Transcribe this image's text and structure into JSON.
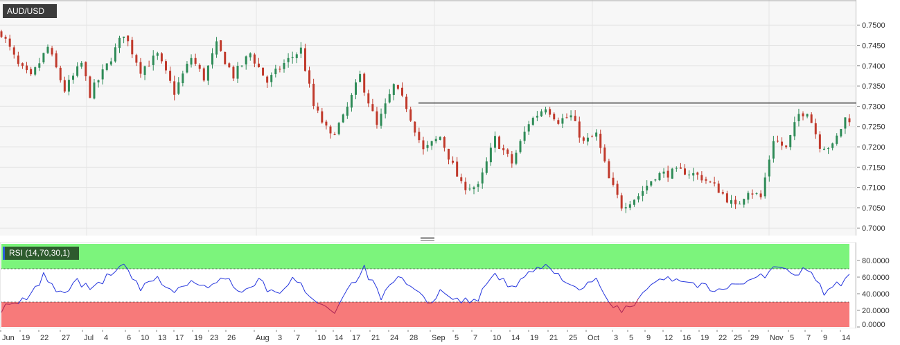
{
  "symbol": "AUD/USD",
  "indicator_label": "RSI (14,70,30,1)",
  "colors": {
    "up_candle": "#2e8b57",
    "down_candle": "#c0392b",
    "rsi_line": "#2233dd",
    "rsi_oversold_line": "#aa2255",
    "overbought_zone": "#7cf47c",
    "oversold_zone": "#f77a7a",
    "resistance_line": "#222222"
  },
  "chart_data": [
    {
      "type": "candlestick",
      "series_name": "AUD/USD",
      "y_axis": {
        "ticks": [
          "0.7500",
          "0.7450",
          "0.7400",
          "0.7350",
          "0.7300",
          "0.7250",
          "0.7200",
          "0.7150",
          "0.7100",
          "0.7050",
          "0.7000"
        ],
        "ylim": [
          0.6985,
          0.7555
        ]
      },
      "x_axis": {
        "tick_labels": [
          "Jun",
          "19",
          "22",
          "27",
          "Jul",
          "4",
          "6",
          "10",
          "13",
          "17",
          "19",
          "23",
          "26",
          "Aug",
          "3",
          "7",
          "10",
          "14",
          "17",
          "21",
          "24",
          "28",
          "Sep",
          "5",
          "7",
          "10",
          "14",
          "19",
          "21",
          "25",
          "Oct",
          "3",
          "5",
          "9",
          "12",
          "16",
          "19",
          "22",
          "25",
          "29",
          "Nov",
          "5",
          "7",
          "9",
          "14"
        ]
      },
      "resistance_level": 0.7308,
      "anchors": [
        {
          "t": 0,
          "v": 0.7482
        },
        {
          "t": 4,
          "v": 0.74
        },
        {
          "t": 7,
          "v": 0.737
        },
        {
          "t": 11,
          "v": 0.7445
        },
        {
          "t": 15,
          "v": 0.734
        },
        {
          "t": 19,
          "v": 0.7405
        },
        {
          "t": 21,
          "v": 0.733
        },
        {
          "t": 25,
          "v": 0.74
        },
        {
          "t": 29,
          "v": 0.748
        },
        {
          "t": 33,
          "v": 0.739
        },
        {
          "t": 37,
          "v": 0.7425
        },
        {
          "t": 41,
          "v": 0.7335
        },
        {
          "t": 45,
          "v": 0.742
        },
        {
          "t": 48,
          "v": 0.737
        },
        {
          "t": 51,
          "v": 0.745
        },
        {
          "t": 55,
          "v": 0.7375
        },
        {
          "t": 59,
          "v": 0.743
        },
        {
          "t": 63,
          "v": 0.736
        },
        {
          "t": 67,
          "v": 0.7405
        },
        {
          "t": 71,
          "v": 0.744
        },
        {
          "t": 74,
          "v": 0.73
        },
        {
          "t": 78,
          "v": 0.7225
        },
        {
          "t": 81,
          "v": 0.727
        },
        {
          "t": 85,
          "v": 0.7375
        },
        {
          "t": 89,
          "v": 0.725
        },
        {
          "t": 93,
          "v": 0.735
        },
        {
          "t": 96,
          "v": 0.73
        },
        {
          "t": 100,
          "v": 0.719
        },
        {
          "t": 104,
          "v": 0.7225
        },
        {
          "t": 109,
          "v": 0.7105
        },
        {
          "t": 113,
          "v": 0.71
        },
        {
          "t": 117,
          "v": 0.722
        },
        {
          "t": 121,
          "v": 0.716
        },
        {
          "t": 125,
          "v": 0.726
        },
        {
          "t": 129,
          "v": 0.73
        },
        {
          "t": 132,
          "v": 0.7265
        },
        {
          "t": 135,
          "v": 0.7275
        },
        {
          "t": 138,
          "v": 0.721
        },
        {
          "t": 141,
          "v": 0.723
        },
        {
          "t": 144,
          "v": 0.712
        },
        {
          "t": 147,
          "v": 0.7055
        },
        {
          "t": 151,
          "v": 0.708
        },
        {
          "t": 155,
          "v": 0.713
        },
        {
          "t": 158,
          "v": 0.7135
        },
        {
          "t": 162,
          "v": 0.714
        },
        {
          "t": 166,
          "v": 0.7125
        },
        {
          "t": 170,
          "v": 0.7095
        },
        {
          "t": 174,
          "v": 0.705
        },
        {
          "t": 177,
          "v": 0.7095
        },
        {
          "t": 180,
          "v": 0.7075
        },
        {
          "t": 183,
          "v": 0.722
        },
        {
          "t": 186,
          "v": 0.7195
        },
        {
          "t": 189,
          "v": 0.728
        },
        {
          "t": 191,
          "v": 0.729
        },
        {
          "t": 194,
          "v": 0.7205
        },
        {
          "t": 197,
          "v": 0.72
        },
        {
          "t": 200,
          "v": 0.727
        }
      ],
      "rsi": {
        "ylim": [
          0,
          100
        ],
        "ticks": [
          "80.0000",
          "60.0000",
          "40.0000",
          "20.0000",
          "0.0000"
        ],
        "overbought": 70,
        "oversold": 30,
        "anchors": [
          {
            "t": 0,
            "v": 22
          },
          {
            "t": 4,
            "v": 28
          },
          {
            "t": 7,
            "v": 38
          },
          {
            "t": 10,
            "v": 62
          },
          {
            "t": 14,
            "v": 40
          },
          {
            "t": 18,
            "v": 55
          },
          {
            "t": 21,
            "v": 45
          },
          {
            "t": 25,
            "v": 60
          },
          {
            "t": 29,
            "v": 73
          },
          {
            "t": 33,
            "v": 45
          },
          {
            "t": 37,
            "v": 58
          },
          {
            "t": 41,
            "v": 42
          },
          {
            "t": 45,
            "v": 55
          },
          {
            "t": 49,
            "v": 45
          },
          {
            "t": 53,
            "v": 62
          },
          {
            "t": 57,
            "v": 40
          },
          {
            "t": 61,
            "v": 55
          },
          {
            "t": 65,
            "v": 38
          },
          {
            "t": 69,
            "v": 58
          },
          {
            "t": 73,
            "v": 40
          },
          {
            "t": 76,
            "v": 26
          },
          {
            "t": 79,
            "v": 20
          },
          {
            "t": 82,
            "v": 46
          },
          {
            "t": 86,
            "v": 70
          },
          {
            "t": 90,
            "v": 35
          },
          {
            "t": 94,
            "v": 58
          },
          {
            "t": 98,
            "v": 45
          },
          {
            "t": 101,
            "v": 28
          },
          {
            "t": 105,
            "v": 45
          },
          {
            "t": 109,
            "v": 30
          },
          {
            "t": 113,
            "v": 35
          },
          {
            "t": 117,
            "v": 66
          },
          {
            "t": 121,
            "v": 45
          },
          {
            "t": 125,
            "v": 66
          },
          {
            "t": 129,
            "v": 72
          },
          {
            "t": 133,
            "v": 60
          },
          {
            "t": 137,
            "v": 45
          },
          {
            "t": 141,
            "v": 55
          },
          {
            "t": 144,
            "v": 30
          },
          {
            "t": 147,
            "v": 18
          },
          {
            "t": 150,
            "v": 28
          },
          {
            "t": 154,
            "v": 55
          },
          {
            "t": 158,
            "v": 60
          },
          {
            "t": 162,
            "v": 55
          },
          {
            "t": 166,
            "v": 50
          },
          {
            "t": 170,
            "v": 42
          },
          {
            "t": 174,
            "v": 52
          },
          {
            "t": 178,
            "v": 60
          },
          {
            "t": 181,
            "v": 62
          },
          {
            "t": 184,
            "v": 74
          },
          {
            "t": 188,
            "v": 60
          },
          {
            "t": 191,
            "v": 72
          },
          {
            "t": 195,
            "v": 42
          },
          {
            "t": 198,
            "v": 50
          },
          {
            "t": 201,
            "v": 60
          }
        ]
      }
    }
  ]
}
